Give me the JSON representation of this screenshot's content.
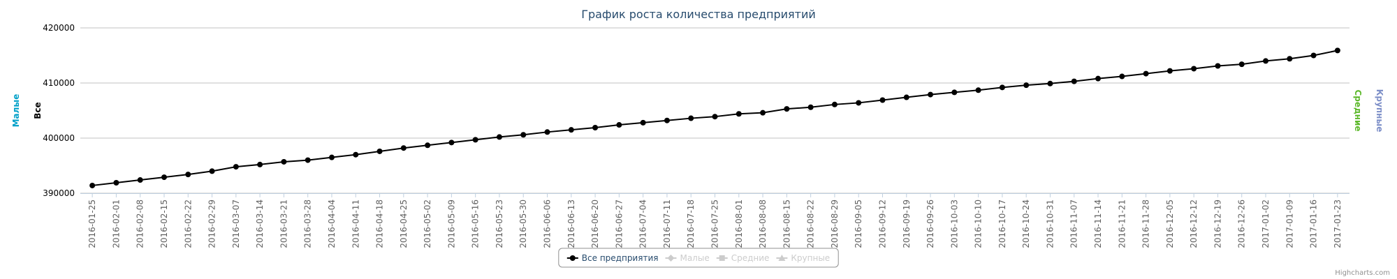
{
  "chart_data": {
    "type": "line",
    "title": "График роста количества предприятий",
    "x": [
      "2016-01-25",
      "2016-02-01",
      "2016-02-08",
      "2016-02-15",
      "2016-02-22",
      "2016-02-29",
      "2016-03-07",
      "2016-03-14",
      "2016-03-21",
      "2016-03-28",
      "2016-04-04",
      "2016-04-11",
      "2016-04-18",
      "2016-04-25",
      "2016-05-02",
      "2016-05-09",
      "2016-05-16",
      "2016-05-23",
      "2016-05-30",
      "2016-06-06",
      "2016-06-13",
      "2016-06-20",
      "2016-06-27",
      "2016-07-04",
      "2016-07-11",
      "2016-07-18",
      "2016-07-25",
      "2016-08-01",
      "2016-08-08",
      "2016-08-15",
      "2016-08-22",
      "2016-08-29",
      "2016-09-05",
      "2016-09-12",
      "2016-09-19",
      "2016-09-26",
      "2016-10-03",
      "2016-10-10",
      "2016-10-17",
      "2016-10-24",
      "2016-10-31",
      "2016-11-07",
      "2016-11-14",
      "2016-11-21",
      "2016-11-28",
      "2016-12-05",
      "2016-12-12",
      "2016-12-19",
      "2016-12-26",
      "2017-01-02",
      "2017-01-09",
      "2017-01-16",
      "2017-01-23"
    ],
    "series": [
      {
        "name": "Все предприятия",
        "color": "#000000",
        "visible": true,
        "symbol": "circle",
        "values": [
          391400,
          391900,
          392400,
          392900,
          393400,
          394000,
          394800,
          395200,
          395700,
          396000,
          396500,
          397000,
          397600,
          398200,
          398700,
          399200,
          399700,
          400200,
          400600,
          401100,
          401500,
          401900,
          402400,
          402800,
          403200,
          403600,
          403900,
          404400,
          404600,
          405300,
          405600,
          406100,
          406400,
          406900,
          407400,
          407900,
          408300,
          408700,
          409200,
          409600,
          409900,
          410300,
          410800,
          411200,
          411700,
          412200,
          412600,
          413100,
          413400,
          414000,
          414400,
          415000,
          415900
        ]
      },
      {
        "name": "Малые",
        "color": "#00a0c8",
        "visible": false,
        "symbol": "diamond"
      },
      {
        "name": "Средние",
        "color": "#5cb82a",
        "visible": false,
        "symbol": "square"
      },
      {
        "name": "Крупные",
        "color": "#7d8fc8",
        "visible": false,
        "symbol": "triangle"
      }
    ],
    "axis_titles": [
      {
        "text": "Малые",
        "color": "#00a0c8",
        "side": "left"
      },
      {
        "text": "Все",
        "color": "#000000",
        "side": "left"
      },
      {
        "text": "Средние",
        "color": "#5cb82a",
        "side": "right"
      },
      {
        "text": "Крупные",
        "color": "#7d8fc8",
        "side": "right"
      }
    ],
    "ylim": [
      390000,
      420000
    ],
    "yticks": [
      390000,
      400000,
      410000,
      420000
    ],
    "grid": true,
    "legend": "bottom",
    "credits": "Highcharts.com"
  }
}
